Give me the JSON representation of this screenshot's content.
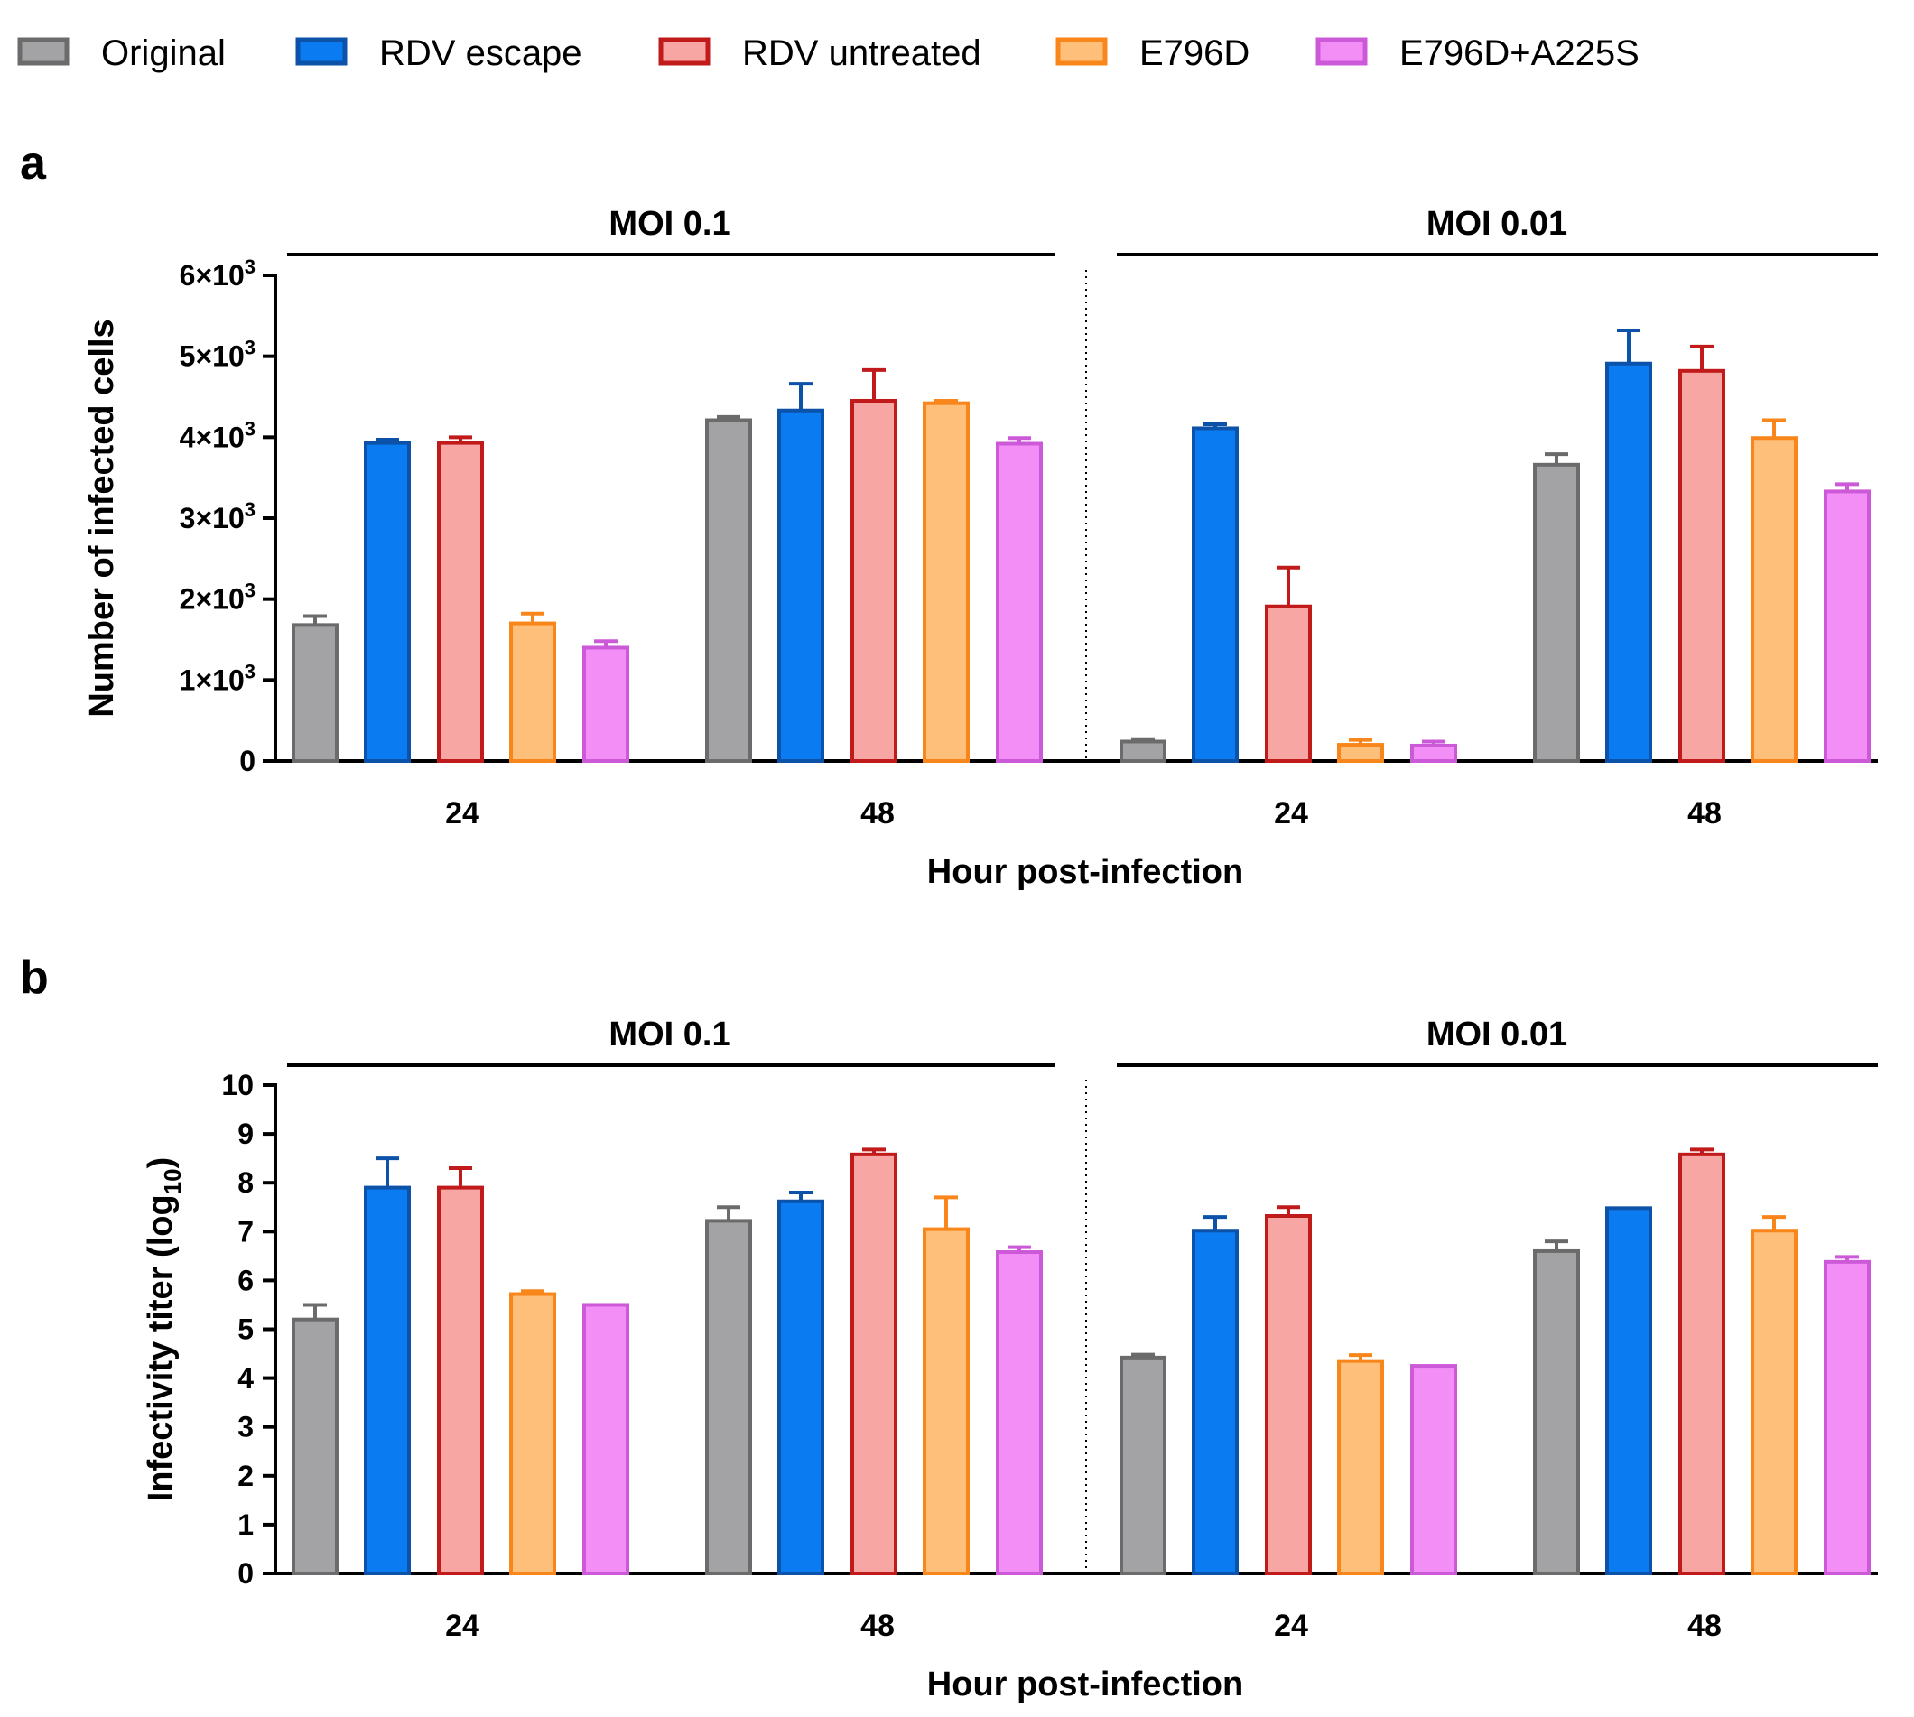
{
  "legend": [
    {
      "label": "Original",
      "fill": "#a3a3a6",
      "stroke": "#6b6b6b"
    },
    {
      "label": "RDV escape",
      "fill": "#0a7bf0",
      "stroke": "#0b52a8"
    },
    {
      "label": "RDV untreated",
      "fill": "#f7a6a4",
      "stroke": "#c01a1a"
    },
    {
      "label": "E796D",
      "fill": "#fdbf79",
      "stroke": "#f8861a"
    },
    {
      "label": "E796D+A225S",
      "fill": "#f48ef7",
      "stroke": "#cc59d8"
    }
  ],
  "chart_data": [
    {
      "type": "bar",
      "panel": "a",
      "ylabel": "Number of infected cells",
      "xlabel": "Hour post-infection",
      "ylim": [
        0,
        6000
      ],
      "yticks": [
        {
          "v": 0,
          "label": "0"
        },
        {
          "v": 1000,
          "label": "1×10",
          "sup": "3"
        },
        {
          "v": 2000,
          "label": "2×10",
          "sup": "3"
        },
        {
          "v": 3000,
          "label": "3×10",
          "sup": "3"
        },
        {
          "v": 4000,
          "label": "4×10",
          "sup": "3"
        },
        {
          "v": 5000,
          "label": "5×10",
          "sup": "3"
        },
        {
          "v": 6000,
          "label": "6×10",
          "sup": "3"
        }
      ],
      "groups": [
        {
          "title": "MOI 0.1",
          "timepoints": [
            {
              "x": "24",
              "values": [
                1680,
                3930,
                3930,
                1700,
                1400
              ],
              "errors": [
                110,
                40,
                70,
                120,
                80
              ]
            },
            {
              "x": "48",
              "values": [
                4210,
                4330,
                4450,
                4420,
                3920
              ],
              "errors": [
                40,
                330,
                380,
                30,
                70
              ]
            }
          ]
        },
        {
          "title": "MOI 0.01",
          "timepoints": [
            {
              "x": "24",
              "values": [
                240,
                4110,
                1910,
                200,
                190
              ],
              "errors": [
                30,
                50,
                480,
                60,
                50
              ]
            },
            {
              "x": "48",
              "values": [
                3660,
                4910,
                4820,
                3990,
                3330
              ],
              "errors": [
                130,
                410,
                300,
                220,
                90
              ]
            }
          ]
        }
      ]
    },
    {
      "type": "bar",
      "panel": "b",
      "ylabel": "Infectivity titer (log",
      "ylabel_sub": "10",
      "ylabel_end": ")",
      "xlabel": "Hour post-infection",
      "ylim": [
        0,
        10
      ],
      "yticks": [
        {
          "v": 0,
          "label": "0"
        },
        {
          "v": 1,
          "label": "1"
        },
        {
          "v": 2,
          "label": "2"
        },
        {
          "v": 3,
          "label": "3"
        },
        {
          "v": 4,
          "label": "4"
        },
        {
          "v": 5,
          "label": "5"
        },
        {
          "v": 6,
          "label": "6"
        },
        {
          "v": 7,
          "label": "7"
        },
        {
          "v": 8,
          "label": "8"
        },
        {
          "v": 9,
          "label": "9"
        },
        {
          "v": 10,
          "label": "10"
        }
      ],
      "groups": [
        {
          "title": "MOI 0.1",
          "timepoints": [
            {
              "x": "24",
              "values": [
                5.2,
                7.9,
                7.9,
                5.72,
                5.5
              ],
              "errors": [
                0.3,
                0.6,
                0.4,
                0.06,
                0
              ]
            },
            {
              "x": "48",
              "values": [
                7.22,
                7.62,
                8.58,
                7.05,
                6.58
              ],
              "errors": [
                0.28,
                0.18,
                0.1,
                0.65,
                0.1
              ]
            }
          ]
        },
        {
          "title": "MOI 0.01",
          "timepoints": [
            {
              "x": "24",
              "values": [
                4.42,
                7.02,
                7.32,
                4.35,
                4.25
              ],
              "errors": [
                0.06,
                0.28,
                0.18,
                0.12,
                0
              ]
            },
            {
              "x": "48",
              "values": [
                6.6,
                7.48,
                8.58,
                7.02,
                6.38
              ],
              "errors": [
                0.2,
                0,
                0.1,
                0.28,
                0.1
              ]
            }
          ]
        }
      ]
    }
  ]
}
